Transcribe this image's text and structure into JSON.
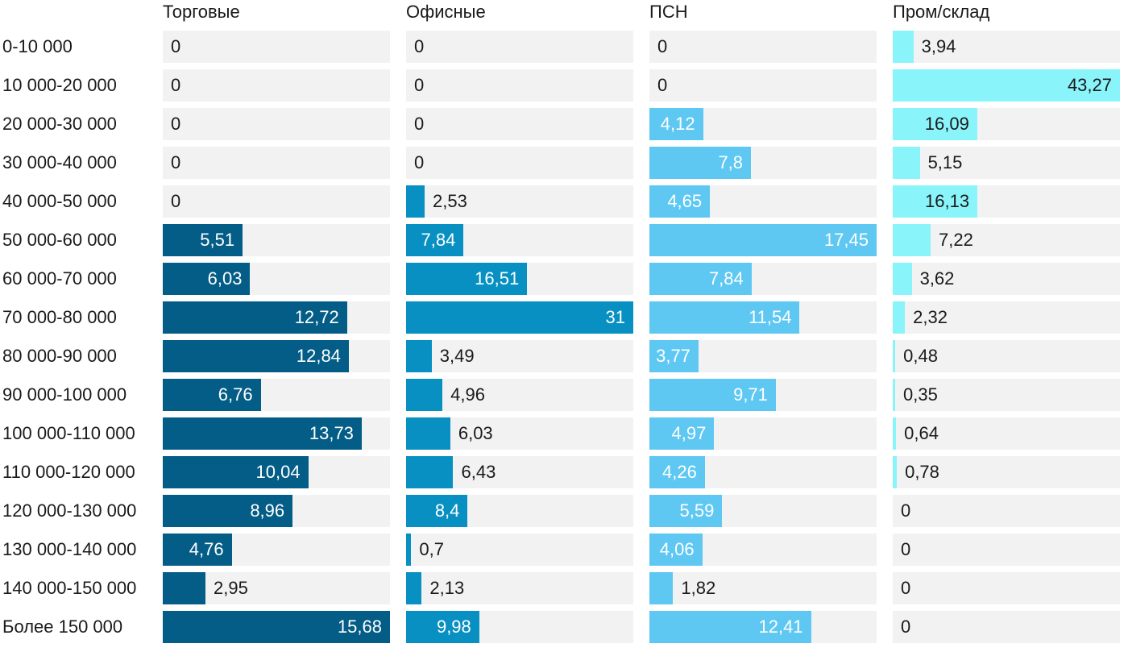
{
  "chart_data": {
    "type": "bar",
    "orientation": "horizontal",
    "categories": [
      "0-10 000",
      "10 000-20 000",
      "20 000-30 000",
      "30 000-40 000",
      "40 000-50 000",
      "50 000-60 000",
      "60 000-70 000",
      "70 000-80 000",
      "80 000-90 000",
      "90 000-100 000",
      "100 000-110 000",
      "110 000-120 000",
      "120 000-130 000",
      "130 000-140 000",
      "140 000-150 000",
      "Более 150 000"
    ],
    "panels": [
      {
        "title": "Торговые",
        "color": "#045d86",
        "max": 15.68,
        "values": [
          0,
          0,
          0,
          0,
          0,
          5.51,
          6.03,
          12.72,
          12.84,
          6.76,
          13.73,
          10.04,
          8.96,
          4.76,
          2.95,
          15.68
        ],
        "labels": [
          "0",
          "0",
          "0",
          "0",
          "0",
          "5,51",
          "6,03",
          "12,72",
          "12,84",
          "6,76",
          "13,73",
          "10,04",
          "8,96",
          "4,76",
          "2,95",
          "15,68"
        ]
      },
      {
        "title": "Офисные",
        "color": "#0890c2",
        "max": 31,
        "values": [
          0,
          0,
          0,
          0,
          2.53,
          7.84,
          16.51,
          31,
          3.49,
          4.96,
          6.03,
          6.43,
          8.4,
          0.7,
          2.13,
          9.98
        ],
        "labels": [
          "0",
          "0",
          "0",
          "0",
          "2,53",
          "7,84",
          "16,51",
          "31",
          "3,49",
          "4,96",
          "6,03",
          "6,43",
          "8,4",
          "0,7",
          "2,13",
          "9,98"
        ]
      },
      {
        "title": "ПСН",
        "color": "#5ec8f3",
        "max": 17.45,
        "values": [
          0,
          0,
          4.12,
          7.8,
          4.65,
          17.45,
          7.84,
          11.54,
          3.77,
          9.71,
          4.97,
          4.26,
          5.59,
          4.06,
          1.82,
          12.41
        ],
        "labels": [
          "0",
          "0",
          "4,12",
          "7,8",
          "4,65",
          "17,45",
          "7,84",
          "11,54",
          "3,77",
          "9,71",
          "4,97",
          "4,26",
          "5,59",
          "4,06",
          "1,82",
          "12,41"
        ]
      },
      {
        "title": "Пром/склад",
        "color": "#8af4fb",
        "max": 43.27,
        "values": [
          3.94,
          43.27,
          16.09,
          5.15,
          16.13,
          7.22,
          3.62,
          2.32,
          0.48,
          0.35,
          0.64,
          0.78,
          0,
          0,
          0,
          0
        ],
        "labels": [
          "3,94",
          "43,27",
          "16,09",
          "5,15",
          "16,13",
          "7,22",
          "3,62",
          "2,32",
          "0,48",
          "0,35",
          "0,64",
          "0,78",
          "0",
          "0",
          "0",
          "0"
        ]
      }
    ],
    "grid": false,
    "legend": "none"
  }
}
